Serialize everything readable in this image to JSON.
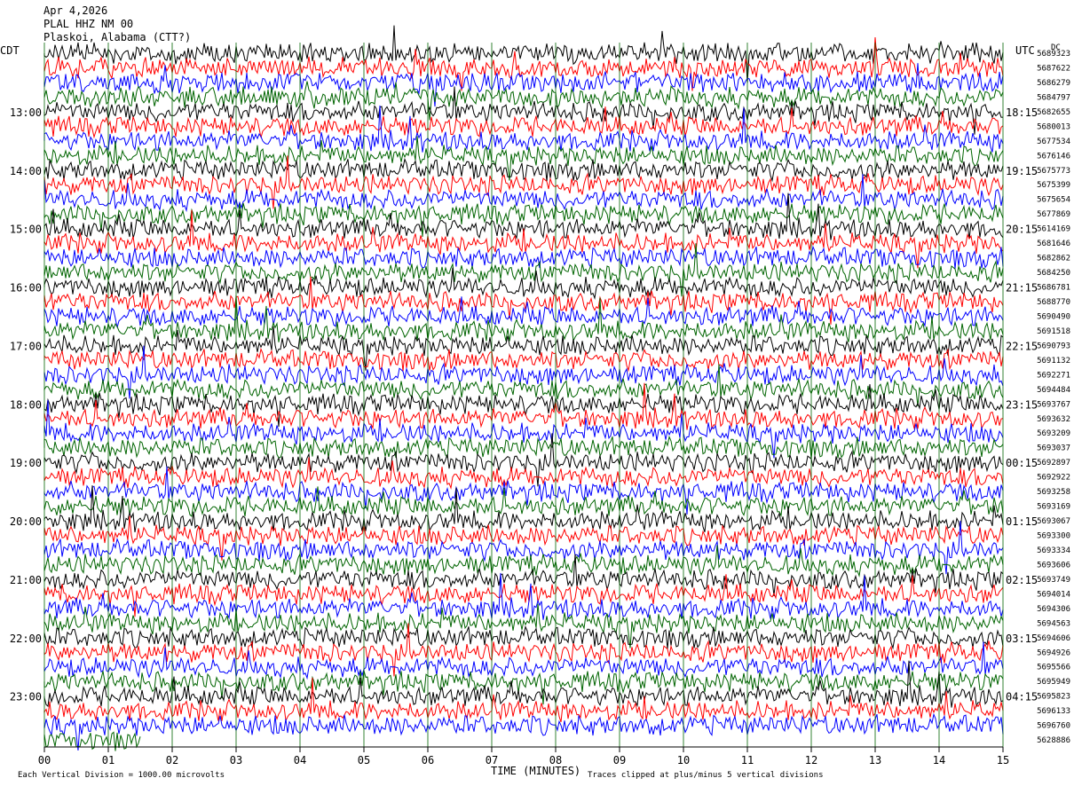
{
  "header": {
    "date": "Apr 4,2026",
    "station": "PLAL HHZ NM 00",
    "location": "Plaskoi, Alabama (CTT?)"
  },
  "colors": {
    "trace_cycle": [
      "#000000",
      "#ff0000",
      "#0000ff",
      "#006400"
    ],
    "gridline": "#006400",
    "background": "#ffffff"
  },
  "chart_data": {
    "type": "line",
    "title": "",
    "xlabel": "TIME (MINUTES)",
    "xlim": [
      0,
      15
    ],
    "x_ticks": [
      "00",
      "01",
      "02",
      "03",
      "04",
      "05",
      "06",
      "07",
      "08",
      "09",
      "10",
      "11",
      "12",
      "13",
      "14",
      "15"
    ],
    "left_axis_label": "CDT",
    "right_axis_label": "UTC",
    "dc_label": "DC",
    "left_hours": [
      "13:00",
      "14:00",
      "15:00",
      "16:00",
      "17:00",
      "18:00",
      "19:00",
      "20:00",
      "21:00",
      "22:00",
      "23:00"
    ],
    "right_hours": [
      "18:15",
      "19:15",
      "20:15",
      "21:15",
      "22:15",
      "23:15",
      "00:15",
      "01:15",
      "02:15",
      "03:15",
      "04:15"
    ],
    "trace_count": 48,
    "traces_per_hour": 4,
    "first_trace_time": "12:00 CDT",
    "dc_offsets": [
      "5689323",
      "5687622",
      "5686279",
      "5684797",
      "5682655",
      "5680013",
      "5677534",
      "5676146",
      "5675773",
      "5675399",
      "5675654",
      "5677869",
      "5614169",
      "5681646",
      "5682862",
      "5684250",
      "5686781",
      "5688770",
      "5690490",
      "5691518",
      "5690793",
      "5691132",
      "5692271",
      "5694484",
      "5693767",
      "5693632",
      "5693209",
      "5693037",
      "5692897",
      "5692922",
      "5693258",
      "5693169",
      "5693067",
      "5693300",
      "5693334",
      "5693606",
      "5693749",
      "5694014",
      "5694306",
      "5694563",
      "5694606",
      "5694926",
      "5695566",
      "5695949",
      "5695823",
      "5696133",
      "5696760",
      "5628886"
    ],
    "scale_note": "Each Vertical Division = 1000.00 microvolts",
    "clip_note": "Traces clipped at plus/minus 5 vertical divisions",
    "grid": true
  }
}
